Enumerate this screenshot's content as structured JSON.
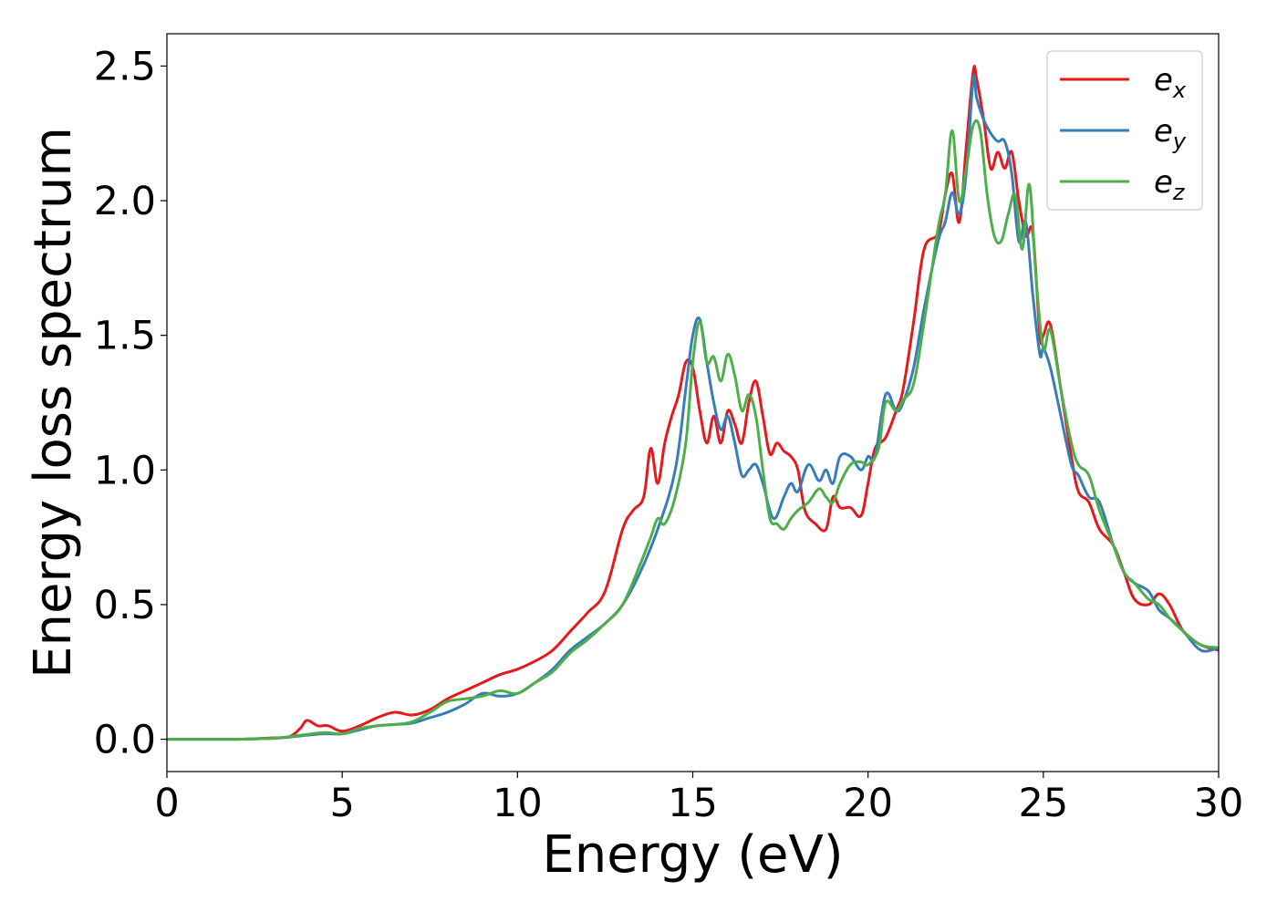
{
  "chart_data": {
    "type": "line",
    "title": "",
    "xlabel": "Energy (eV)",
    "ylabel": "Energy loss spectrum",
    "xlim": [
      0,
      30
    ],
    "ylim": [
      -0.12,
      2.62
    ],
    "xticks": [
      0,
      5,
      10,
      15,
      20,
      25,
      30
    ],
    "xtick_labels": [
      "0",
      "5",
      "10",
      "15",
      "20",
      "25",
      "30"
    ],
    "yticks": [
      0.0,
      0.5,
      1.0,
      1.5,
      2.0,
      2.5
    ],
    "ytick_labels": [
      "0.0",
      "0.5",
      "1.0",
      "1.5",
      "2.0",
      "2.5"
    ],
    "grid": false,
    "legend_position": "top-right",
    "series": [
      {
        "name": "e",
        "subscript": "x",
        "color": "#e41a1c",
        "x": [
          0,
          1,
          2,
          3,
          3.5,
          3.8,
          4.0,
          4.3,
          4.6,
          5.0,
          5.5,
          6.0,
          6.5,
          7.0,
          7.5,
          8.0,
          8.5,
          9.0,
          9.5,
          10.0,
          10.5,
          11.0,
          11.5,
          12.0,
          12.5,
          13.0,
          13.3,
          13.6,
          13.8,
          14.0,
          14.2,
          14.4,
          14.6,
          14.8,
          15.0,
          15.2,
          15.4,
          15.6,
          15.8,
          16.0,
          16.2,
          16.4,
          16.6,
          16.8,
          17.0,
          17.2,
          17.4,
          17.6,
          17.8,
          18.0,
          18.2,
          18.5,
          18.8,
          19.0,
          19.2,
          19.5,
          19.8,
          20.0,
          20.2,
          20.5,
          20.8,
          21.0,
          21.3,
          21.6,
          22.0,
          22.2,
          22.4,
          22.6,
          22.8,
          23.0,
          23.1,
          23.3,
          23.5,
          23.7,
          23.9,
          24.1,
          24.3,
          24.5,
          24.7,
          24.9,
          25.0,
          25.2,
          25.5,
          25.8,
          26.0,
          26.3,
          26.6,
          27.0,
          27.3,
          27.6,
          28.0,
          28.3,
          28.6,
          29.0,
          29.5,
          30.0
        ],
        "values": [
          0.0,
          0.0,
          0.0,
          0.005,
          0.01,
          0.04,
          0.07,
          0.05,
          0.05,
          0.03,
          0.05,
          0.08,
          0.1,
          0.09,
          0.11,
          0.15,
          0.18,
          0.21,
          0.24,
          0.26,
          0.29,
          0.33,
          0.4,
          0.47,
          0.55,
          0.78,
          0.85,
          0.9,
          1.08,
          0.95,
          1.1,
          1.2,
          1.28,
          1.4,
          1.38,
          1.22,
          1.1,
          1.2,
          1.1,
          1.22,
          1.17,
          1.1,
          1.25,
          1.33,
          1.2,
          1.06,
          1.1,
          1.07,
          1.05,
          1.0,
          0.85,
          0.8,
          0.78,
          0.9,
          0.86,
          0.86,
          0.83,
          0.95,
          1.08,
          1.12,
          1.22,
          1.3,
          1.55,
          1.82,
          1.88,
          2.02,
          2.1,
          1.92,
          2.2,
          2.48,
          2.45,
          2.3,
          2.12,
          2.18,
          2.12,
          2.18,
          2.0,
          1.87,
          1.88,
          1.5,
          1.5,
          1.54,
          1.3,
          1.05,
          0.92,
          0.88,
          0.78,
          0.72,
          0.62,
          0.52,
          0.5,
          0.54,
          0.5,
          0.4,
          0.35,
          0.33
        ]
      },
      {
        "name": "e",
        "subscript": "y",
        "color": "#377eb8",
        "x": [
          0,
          1,
          2,
          3,
          3.5,
          4.0,
          4.5,
          5.0,
          5.5,
          6.0,
          6.5,
          7.0,
          7.5,
          8.0,
          8.5,
          9.0,
          9.5,
          10.0,
          10.5,
          11.0,
          11.5,
          12.0,
          12.5,
          13.0,
          13.5,
          14.0,
          14.5,
          14.8,
          15.0,
          15.2,
          15.4,
          15.6,
          15.8,
          16.0,
          16.2,
          16.4,
          16.6,
          16.8,
          17.0,
          17.3,
          17.6,
          17.8,
          18.0,
          18.3,
          18.6,
          18.8,
          19.0,
          19.2,
          19.5,
          19.8,
          20.0,
          20.2,
          20.5,
          20.8,
          21.0,
          21.3,
          21.6,
          22.0,
          22.2,
          22.4,
          22.6,
          22.8,
          23.0,
          23.1,
          23.3,
          23.5,
          23.7,
          23.9,
          24.1,
          24.3,
          24.5,
          24.7,
          24.9,
          25.0,
          25.2,
          25.5,
          25.8,
          26.0,
          26.3,
          26.6,
          27.0,
          27.3,
          27.6,
          28.0,
          28.3,
          28.6,
          29.0,
          29.5,
          30.0
        ],
        "values": [
          0.0,
          0.0,
          0.0,
          0.003,
          0.008,
          0.015,
          0.02,
          0.02,
          0.035,
          0.05,
          0.055,
          0.06,
          0.08,
          0.1,
          0.13,
          0.17,
          0.16,
          0.17,
          0.21,
          0.26,
          0.33,
          0.38,
          0.43,
          0.5,
          0.62,
          0.78,
          1.0,
          1.3,
          1.5,
          1.56,
          1.4,
          1.25,
          1.15,
          1.2,
          1.1,
          0.98,
          1.0,
          1.02,
          0.95,
          0.82,
          0.9,
          0.95,
          0.92,
          1.02,
          0.96,
          1.0,
          0.95,
          1.05,
          1.05,
          1.0,
          1.05,
          1.05,
          1.28,
          1.22,
          1.25,
          1.38,
          1.6,
          1.85,
          1.92,
          2.03,
          1.95,
          2.1,
          2.45,
          2.38,
          2.3,
          2.25,
          2.22,
          2.22,
          2.1,
          1.85,
          1.92,
          1.65,
          1.43,
          1.45,
          1.38,
          1.2,
          1.02,
          0.98,
          0.9,
          0.88,
          0.72,
          0.62,
          0.58,
          0.55,
          0.48,
          0.45,
          0.4,
          0.33,
          0.34
        ]
      },
      {
        "name": "e",
        "subscript": "z",
        "color": "#4daf4a",
        "x": [
          0,
          1,
          2,
          3,
          3.5,
          4.0,
          4.5,
          5.0,
          5.5,
          6.0,
          6.5,
          7.0,
          7.5,
          8.0,
          8.5,
          9.0,
          9.5,
          10.0,
          10.5,
          11.0,
          11.5,
          12.0,
          12.5,
          13.0,
          13.5,
          13.8,
          14.0,
          14.2,
          14.5,
          14.8,
          15.0,
          15.2,
          15.4,
          15.6,
          15.8,
          16.0,
          16.2,
          16.4,
          16.6,
          16.8,
          17.0,
          17.2,
          17.4,
          17.6,
          17.8,
          18.0,
          18.3,
          18.6,
          18.8,
          19.0,
          19.2,
          19.5,
          19.8,
          20.0,
          20.3,
          20.5,
          20.8,
          21.0,
          21.3,
          21.6,
          22.0,
          22.2,
          22.4,
          22.6,
          22.8,
          23.0,
          23.2,
          23.4,
          23.6,
          23.8,
          24.0,
          24.2,
          24.4,
          24.6,
          24.8,
          25.0,
          25.2,
          25.5,
          25.8,
          26.0,
          26.3,
          26.6,
          27.0,
          27.3,
          27.6,
          28.0,
          28.3,
          28.6,
          29.0,
          29.5,
          30.0
        ],
        "values": [
          0.0,
          0.0,
          0.0,
          0.003,
          0.01,
          0.018,
          0.025,
          0.02,
          0.04,
          0.05,
          0.055,
          0.065,
          0.1,
          0.14,
          0.15,
          0.16,
          0.18,
          0.17,
          0.21,
          0.25,
          0.32,
          0.37,
          0.43,
          0.5,
          0.65,
          0.75,
          0.82,
          0.8,
          0.9,
          1.1,
          1.4,
          1.55,
          1.4,
          1.42,
          1.33,
          1.43,
          1.35,
          1.22,
          1.28,
          1.2,
          1.0,
          0.82,
          0.8,
          0.78,
          0.82,
          0.85,
          0.88,
          0.93,
          0.9,
          0.88,
          0.95,
          1.02,
          1.03,
          1.02,
          1.08,
          1.25,
          1.22,
          1.26,
          1.32,
          1.55,
          1.9,
          2.02,
          2.26,
          2.0,
          2.12,
          2.28,
          2.26,
          2.02,
          1.87,
          1.85,
          1.95,
          2.02,
          1.82,
          2.06,
          1.7,
          1.45,
          1.52,
          1.3,
          1.1,
          1.02,
          0.98,
          0.85,
          0.72,
          0.62,
          0.58,
          0.52,
          0.5,
          0.45,
          0.4,
          0.35,
          0.34
        ]
      }
    ]
  }
}
